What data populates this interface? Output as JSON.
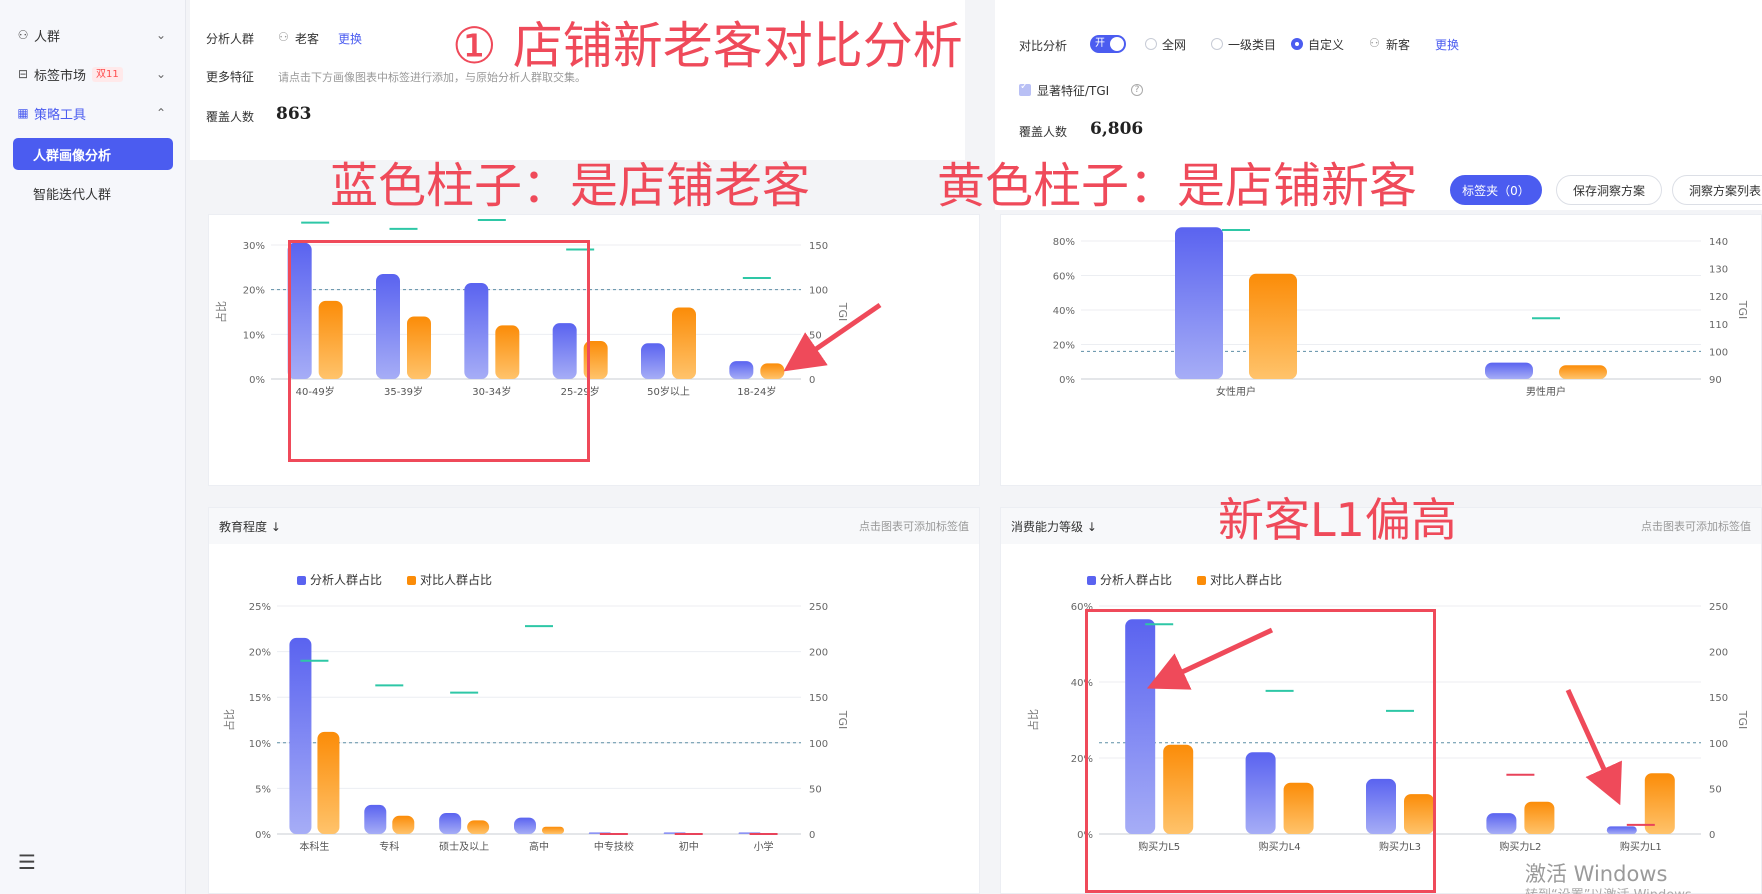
{
  "sidebar": {
    "items": [
      {
        "label": "人群",
        "icon": "person-icon"
      },
      {
        "label": "标签市场",
        "icon": "tag-icon",
        "badge": "双11"
      },
      {
        "label": "策略工具",
        "icon": "grid-icon"
      }
    ],
    "sub_items": [
      {
        "label": "人群画像分析"
      },
      {
        "label": "智能迭代人群"
      }
    ]
  },
  "left_filter": {
    "analysis_label": "分析人群",
    "analysis_value": "老客",
    "change_link": "更换",
    "more_label": "更多特征",
    "more_hint": "请点击下方画像图表中标签进行添加，与原始分析人群取交集。",
    "coverage_label": "覆盖人数",
    "coverage_value": "863"
  },
  "right_filter": {
    "compare_label": "对比分析",
    "toggle_label": "开",
    "options": [
      "全网",
      "一级类目",
      "自定义"
    ],
    "selected_value": "新客",
    "change_link": "更换",
    "tgi_label": "显著特征/TGI",
    "coverage_label": "覆盖人数",
    "coverage_value": "6,806"
  },
  "toolbar": {
    "tag_button": "标签夹（0）",
    "save_button": "保存洞察方案",
    "list_button": "洞察方案列表"
  },
  "annotations": {
    "title": "① 店铺新老客对比分析",
    "blue_note": "蓝色柱子：是店铺老客",
    "yellow_note": "黄色柱子：是店铺新客",
    "l1_note": "新客L1偏高"
  },
  "cards": {
    "education_title": "教育程度 ↓",
    "education_hint": "点击图表可添加标签值",
    "consumption_title": "消费能力等级 ↓",
    "consumption_hint": "点击图表可添加标签值"
  },
  "watermark": {
    "line1": "激活 Windows",
    "line2": "转到“设置”以激活 Windows。"
  },
  "chart_data": [
    {
      "id": "age",
      "type": "bar",
      "categories": [
        "40-49岁",
        "35-39岁",
        "30-34岁",
        "25-29岁",
        "50岁以上",
        "18-24岁"
      ],
      "series": [
        {
          "values": [
            30.5,
            23.5,
            21.5,
            12.5,
            8,
            4
          ]
        },
        {
          "values": [
            17.5,
            14,
            12,
            8.5,
            16,
            3.5
          ]
        }
      ],
      "tgi": [
        175,
        168,
        178,
        145,
        null,
        113
      ],
      "ylabel": "占比",
      "y2label": "TGI",
      "ylim": [
        0,
        30
      ],
      "yticks": [
        "0%",
        "10%",
        "20%",
        "30%"
      ],
      "y2lim": [
        0,
        150
      ],
      "y2ticks": [
        "0",
        "50",
        "100",
        "150"
      ],
      "refline": 100
    },
    {
      "id": "gender",
      "type": "bar",
      "categories": [
        "女性用户",
        "男性用户"
      ],
      "series": [
        {
          "values": [
            88,
            9.5
          ]
        },
        {
          "values": [
            61,
            8
          ]
        }
      ],
      "tgi": [
        144,
        112
      ],
      "y2label": "TGI",
      "ylim": [
        0,
        80
      ],
      "yticks": [
        "0%",
        "20%",
        "40%",
        "60%",
        "80%"
      ],
      "y2lim": [
        90,
        140
      ],
      "y2ticks": [
        "90",
        "100",
        "110",
        "120",
        "130",
        "140"
      ],
      "refline": 100
    },
    {
      "id": "education",
      "type": "bar",
      "legend": [
        "分析人群占比",
        "对比人群占比"
      ],
      "categories": [
        "本科生",
        "专科",
        "硕士及以上",
        "高中",
        "中专技校",
        "初中",
        "小学"
      ],
      "series": [
        {
          "values": [
            21.5,
            3.2,
            2.3,
            1.8,
            0.1,
            0.1,
            0.1
          ]
        },
        {
          "values": [
            11.2,
            2,
            1.5,
            0.8,
            0,
            0,
            0
          ]
        }
      ],
      "tgi": [
        190,
        163,
        155,
        228,
        0,
        0,
        0
      ],
      "ylabel": "占比",
      "y2label": "TGI",
      "ylim": [
        0,
        25
      ],
      "yticks": [
        "0%",
        "5%",
        "10%",
        "15%",
        "20%",
        "25%"
      ],
      "y2lim": [
        0,
        250
      ],
      "y2ticks": [
        "0",
        "50",
        "100",
        "150",
        "200",
        "250"
      ],
      "refline": 100
    },
    {
      "id": "consumption",
      "type": "bar",
      "legend": [
        "分析人群占比",
        "对比人群占比"
      ],
      "categories": [
        "购买力L5",
        "购买力L4",
        "购买力L3",
        "购买力L2",
        "购买力L1"
      ],
      "series": [
        {
          "values": [
            56.5,
            21.5,
            14.5,
            5.5,
            2
          ]
        },
        {
          "values": [
            23.5,
            13.5,
            10.5,
            8.5,
            16
          ]
        }
      ],
      "tgi": [
        230,
        157,
        135,
        65,
        10
      ],
      "ylabel": "占比",
      "y2label": "TGI",
      "ylim": [
        0,
        60
      ],
      "yticks": [
        "0%",
        "20%",
        "40%",
        "60%"
      ],
      "y2lim": [
        0,
        250
      ],
      "y2ticks": [
        "0",
        "50",
        "100",
        "150",
        "200",
        "250"
      ],
      "refline": 100
    }
  ],
  "colors": {
    "accent": "#4b5cf0",
    "blue_top": "#5a63f0",
    "blue_bottom": "#a6adf6",
    "orange_top": "#fb8c08",
    "orange_bottom": "#ffc36b",
    "tgi": "#2ec7a6",
    "tgi_low": "#e8435a",
    "annotation": "#ef4a5a"
  }
}
